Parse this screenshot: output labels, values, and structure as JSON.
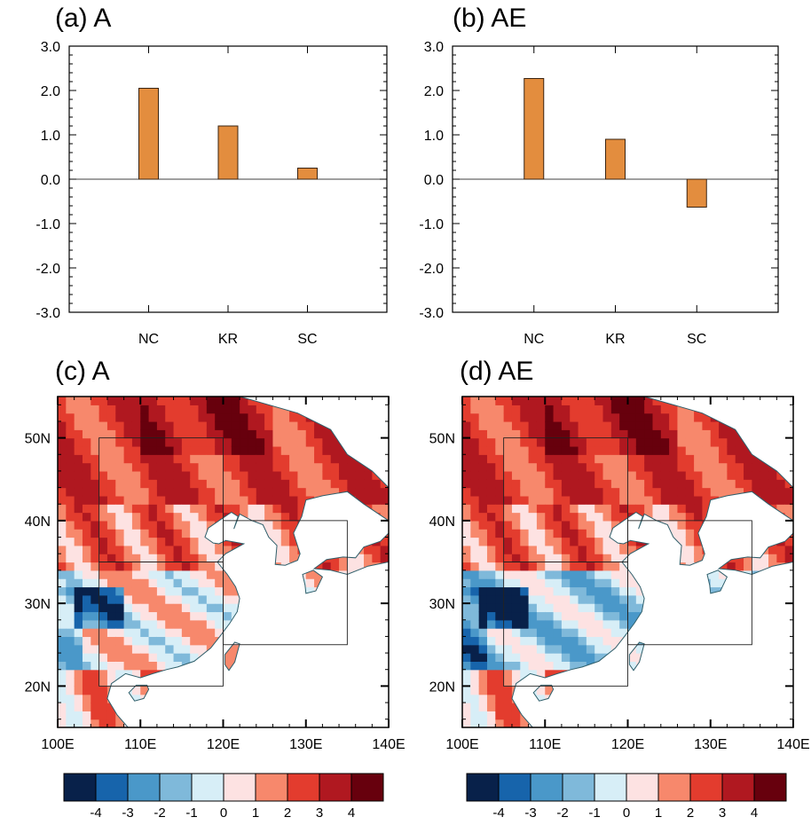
{
  "figure": {
    "panels": {
      "a": {
        "title": "(a) A"
      },
      "b": {
        "title": "(b) AE"
      },
      "c": {
        "title": "(c) A"
      },
      "d": {
        "title": "(d) AE"
      }
    }
  },
  "colors": {
    "bar_fill": "#e38d3e",
    "bar_edge": "#3a2412",
    "axis": "#000000",
    "land_border": "#2f5f6b",
    "colorbar": [
      "#08214a",
      "#1764ab",
      "#4a98c9",
      "#7fb9da",
      "#d7eef7",
      "#fde2e2",
      "#f7886c",
      "#e33c2e",
      "#b01820",
      "#67000d"
    ]
  },
  "chart_data": [
    {
      "type": "bar",
      "panel": "a",
      "title": "(a) A",
      "categories": [
        "NC",
        "KR",
        "SC"
      ],
      "values": [
        2.05,
        1.2,
        0.25
      ],
      "ylim": [
        -3.0,
        3.0
      ],
      "yticks": [
        "3.0",
        "2.0",
        "1.0",
        "0.0",
        "-1.0",
        "-2.0",
        "-3.0"
      ],
      "xlabel": "",
      "ylabel": "",
      "grid": false
    },
    {
      "type": "bar",
      "panel": "b",
      "title": "(b) AE",
      "categories": [
        "NC",
        "KR",
        "SC"
      ],
      "values": [
        2.27,
        0.9,
        -0.63
      ],
      "ylim": [
        -3.0,
        3.0
      ],
      "yticks": [
        "3.0",
        "2.0",
        "1.0",
        "0.0",
        "-1.0",
        "-2.0",
        "-3.0"
      ],
      "xlabel": "",
      "ylabel": "",
      "grid": false
    },
    {
      "type": "heatmap",
      "panel": "c",
      "title": "(c) A",
      "xlim": [
        100,
        140
      ],
      "ylim": [
        15,
        55
      ],
      "xticks": [
        "100E",
        "110E",
        "120E",
        "130E",
        "140E"
      ],
      "yticks": [
        "20N",
        "30N",
        "40N",
        "50N"
      ],
      "colorbar": {
        "levels": [
          -4,
          -3,
          -2,
          -1,
          0,
          1,
          2,
          3,
          4
        ],
        "labels": [
          "-4",
          "-3",
          "-2",
          "-1",
          "0",
          "1",
          "2",
          "3",
          "4"
        ]
      },
      "regions": [
        {
          "name": "NC",
          "lon": [
            105,
            120
          ],
          "lat": [
            35,
            50
          ]
        },
        {
          "name": "KR",
          "lon": [
            120,
            135
          ],
          "lat": [
            25,
            40
          ]
        },
        {
          "name": "SC",
          "lon": [
            105,
            120
          ],
          "lat": [
            20,
            35
          ]
        }
      ]
    },
    {
      "type": "heatmap",
      "panel": "d",
      "title": "(d) AE",
      "xlim": [
        100,
        140
      ],
      "ylim": [
        15,
        55
      ],
      "xticks": [
        "100E",
        "110E",
        "120E",
        "130E",
        "140E"
      ],
      "yticks": [
        "20N",
        "30N",
        "40N",
        "50N"
      ],
      "colorbar": {
        "levels": [
          -4,
          -3,
          -2,
          -1,
          0,
          1,
          2,
          3,
          4
        ],
        "labels": [
          "-4",
          "-3",
          "-2",
          "-1",
          "0",
          "1",
          "2",
          "3",
          "4"
        ]
      },
      "regions": [
        {
          "name": "NC",
          "lon": [
            105,
            120
          ],
          "lat": [
            35,
            50
          ]
        },
        {
          "name": "KR",
          "lon": [
            120,
            135
          ],
          "lat": [
            25,
            40
          ]
        },
        {
          "name": "SC",
          "lon": [
            105,
            120
          ],
          "lat": [
            20,
            35
          ]
        }
      ]
    }
  ]
}
